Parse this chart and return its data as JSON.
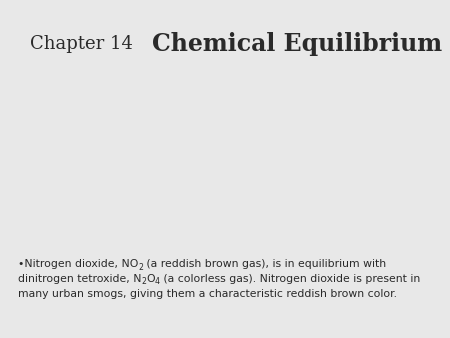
{
  "background_color": "#e8e8e8",
  "text_color": "#2a2a2a",
  "title_chapter": "Chapter 14",
  "title_main": "Chemical Equilibrium",
  "title_chapter_fontsize": 13,
  "title_main_fontsize": 17,
  "text_fontsize": 7.8,
  "line1_seg1": "•Nitrogen dioxide, NO",
  "line1_sub1": "2",
  "line1_seg2": " (a reddish brown gas), is in equilibrium with",
  "line2_seg1": "dinitrogen tetroxide, N",
  "line2_sub1": "2",
  "line2_seg2": "O",
  "line2_sub2": "4",
  "line2_seg3": " (a colorless gas). Nitrogen dioxide is present in",
  "line3": "many urban smogs, giving them a characteristic reddish brown color."
}
